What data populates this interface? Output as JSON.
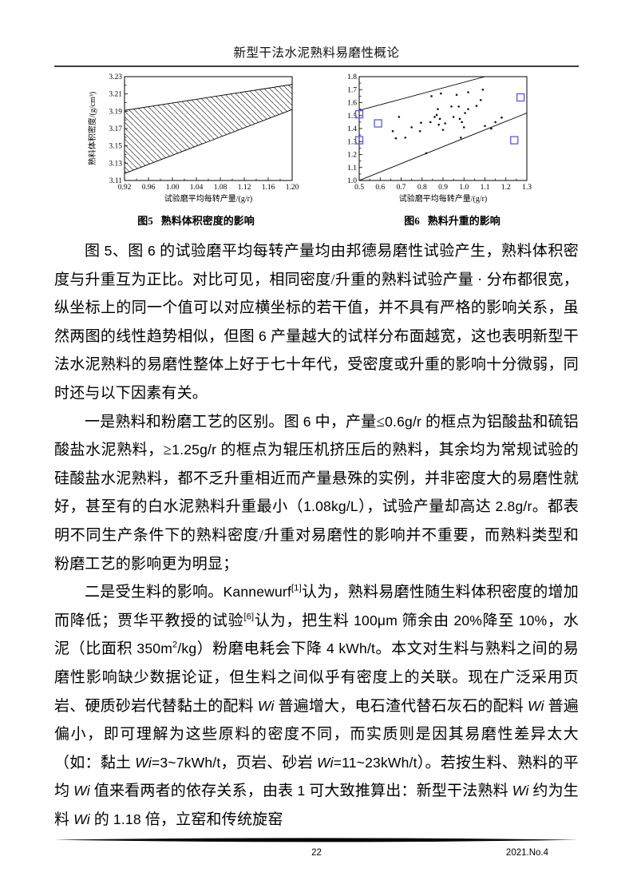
{
  "header": {
    "title": "新型干法水泥熟料易磨性概论"
  },
  "figures": [
    {
      "caption_no": "图5",
      "caption_text": "熟料体积密度的影响"
    },
    {
      "caption_no": "图6",
      "caption_text": "熟料升重的影响"
    }
  ],
  "chart_data": [
    {
      "type": "area",
      "subtype": "hatched-band",
      "title": "图5 熟料体积密度的影响",
      "xlabel": "试验磨平均每转产量/(g/r)",
      "ylabel": "熟料体积密度/(g/cm³)",
      "xlim": [
        0.92,
        1.2
      ],
      "ylim": [
        3.11,
        3.23
      ],
      "xticks": [
        "0.92",
        "0.96",
        "1.00",
        "1.04",
        "1.08",
        "1.12",
        "1.16",
        "1.20"
      ],
      "yticks": [
        "3.11",
        "3.13",
        "3.15",
        "3.17",
        "3.19",
        "3.21",
        "3.23"
      ],
      "band_upper": [
        [
          0.92,
          3.191
        ],
        [
          1.2,
          3.221
        ]
      ],
      "band_lower": [
        [
          0.92,
          3.118
        ],
        [
          1.2,
          3.192
        ]
      ],
      "hatch_direction": "backslash",
      "grid": false,
      "legend": "none"
    },
    {
      "type": "scatter",
      "title": "图6 熟料升重的影响",
      "xlabel": "试验磨平均每转产量/(g/r)",
      "ylabel": "熟料升重/(kg/L)",
      "xlim": [
        0.5,
        1.3
      ],
      "ylim": [
        1.0,
        1.8
      ],
      "xticks": [
        "0.5",
        "0.6",
        "0.7",
        "0.8",
        "0.9",
        "1.0",
        "1.1",
        "1.2",
        "1.3"
      ],
      "yticks": [
        "1.0",
        "1.1",
        "1.2",
        "1.3",
        "1.4",
        "1.5",
        "1.6",
        "1.7",
        "1.8"
      ],
      "square_color": "#5b5bd6",
      "dot_color": "#111111",
      "dots": [
        [
          0.66,
          1.38
        ],
        [
          0.675,
          1.325
        ],
        [
          0.69,
          1.49
        ],
        [
          0.72,
          1.33
        ],
        [
          0.75,
          1.41
        ],
        [
          0.79,
          1.38
        ],
        [
          0.795,
          1.445
        ],
        [
          0.82,
          1.21
        ],
        [
          0.84,
          1.45
        ],
        [
          0.845,
          1.65
        ],
        [
          0.86,
          1.49
        ],
        [
          0.87,
          1.505
        ],
        [
          0.875,
          1.55
        ],
        [
          0.88,
          1.43
        ],
        [
          0.885,
          1.475
        ],
        [
          0.89,
          1.67
        ],
        [
          0.9,
          1.39
        ],
        [
          0.91,
          1.44
        ],
        [
          0.94,
          1.57
        ],
        [
          0.95,
          1.49
        ],
        [
          0.965,
          1.66
        ],
        [
          0.975,
          1.57
        ],
        [
          0.98,
          1.475
        ],
        [
          0.985,
          1.33
        ],
        [
          0.99,
          1.45
        ],
        [
          1.0,
          1.41
        ],
        [
          1.005,
          1.52
        ],
        [
          1.02,
          1.55
        ],
        [
          1.02,
          1.68
        ],
        [
          1.06,
          1.575
        ],
        [
          1.08,
          1.62
        ],
        [
          1.09,
          1.7
        ],
        [
          1.1,
          1.42
        ],
        [
          1.13,
          1.4
        ],
        [
          1.15,
          1.45
        ],
        [
          1.18,
          1.485
        ]
      ],
      "squares": [
        [
          0.5,
          1.51
        ],
        [
          0.5,
          1.31
        ],
        [
          0.59,
          1.44
        ],
        [
          1.24,
          1.31
        ],
        [
          1.27,
          1.64
        ]
      ],
      "envelope_lines": [
        {
          "from": [
            0.5,
            1.0
          ],
          "to": [
            1.3,
            1.52
          ]
        },
        {
          "from": [
            0.5,
            1.54
          ],
          "to": [
            1.1,
            1.8
          ]
        }
      ],
      "grid": false,
      "legend": "none"
    }
  ],
  "paragraphs": [
    [
      {
        "t": "图 "
      },
      {
        "t": "5",
        "f": "lat"
      },
      {
        "t": "、图 "
      },
      {
        "t": "6",
        "f": "lat"
      },
      {
        "t": " 的试验磨平均每转产量均由邦德易磨性试验产生，熟料体积密度与升重互为正比。对比可见，相同密度/升重的熟料试验产量 · 分布都很宽，纵坐标上的同一个值可以对应横坐标的若干值，并不具有严格的影响关系，虽然两图的线性趋势相似，但图 "
      },
      {
        "t": "6",
        "f": "lat"
      },
      {
        "t": " 产量越大的试样分布面越宽，这也表明新型干法水泥熟料的易磨性整体上好于七十年代，受密度或升重的影响十分微弱，同时还与以下因素有关。"
      }
    ],
    [
      {
        "t": "一是熟料和粉磨工艺的区别。图 "
      },
      {
        "t": "6",
        "f": "lat"
      },
      {
        "t": " 中，产量≤"
      },
      {
        "t": "0.6g/r",
        "f": "lat"
      },
      {
        "t": " 的框点为铝酸盐和硫铝酸盐水泥熟料，≥"
      },
      {
        "t": "1.25g/r",
        "f": "lat"
      },
      {
        "t": " 的框点为辊压机挤压后的熟料，其余均为常规试验的硅酸盐水泥熟料，都不乏升重相近而产量悬殊的实例，并非密度大的易磨性就好，甚至有的白水泥熟料升重最小（"
      },
      {
        "t": "1.08kg/L",
        "f": "lat"
      },
      {
        "t": "），试验产量却高达 "
      },
      {
        "t": "2.8g/r",
        "f": "lat"
      },
      {
        "t": "。都表明不同生产条件下的熟料密度/升重对易磨性的影响并不重要，而熟料类型和粉磨工艺的影响更为明显；"
      }
    ],
    [
      {
        "t": "二是受生料的影响。"
      },
      {
        "t": "Kannewurf",
        "f": "lat"
      },
      {
        "t": "[1]",
        "f": "sup"
      },
      {
        "t": "认为，熟料易磨性随生料体积密度的增加而降低；贾华平教授的试验"
      },
      {
        "t": "[6]",
        "f": "sup"
      },
      {
        "t": "认为，把生料 "
      },
      {
        "t": "100μm",
        "f": "lat"
      },
      {
        "t": " 筛余由 "
      },
      {
        "t": "20%",
        "f": "lat"
      },
      {
        "t": "降至 "
      },
      {
        "t": "10%",
        "f": "lat"
      },
      {
        "t": "，水泥（比面积 "
      },
      {
        "t": "350m",
        "f": "lat"
      },
      {
        "t": "2",
        "f": "sup"
      },
      {
        "t": "/kg",
        "f": "lat"
      },
      {
        "t": "）粉磨电耗会下降 "
      },
      {
        "t": "4 kWh/t",
        "f": "lat"
      },
      {
        "t": "。本文对生料与熟料之间的易磨性影响缺少数据论证，但生料之间似乎有密度上的关联。现在广泛采用页岩、硬质砂岩代替黏土的配料 "
      },
      {
        "t": "Wi",
        "f": "lat-it"
      },
      {
        "t": " 普遍增大，电石渣代替石灰石的配料 "
      },
      {
        "t": "Wi",
        "f": "lat-it"
      },
      {
        "t": " 普遍偏小，即可理解为这些原料的密度不同，而实质则是因其易磨性差异太大（如：黏土 "
      },
      {
        "t": "Wi",
        "f": "lat-it"
      },
      {
        "t": "=3~7kWh/t",
        "f": "lat"
      },
      {
        "t": "，页岩、砂岩 "
      },
      {
        "t": "Wi",
        "f": "lat-it"
      },
      {
        "t": "=11~23kWh/t",
        "f": "lat"
      },
      {
        "t": "）。若按生料、熟料的平均 "
      },
      {
        "t": "Wi",
        "f": "lat-it"
      },
      {
        "t": " 值来看两者的依存关系，由表 "
      },
      {
        "t": "1",
        "f": "lat"
      },
      {
        "t": " 可大致推算出：新型干法熟料 "
      },
      {
        "t": "Wi",
        "f": "lat-it"
      },
      {
        "t": " 约为生料 "
      },
      {
        "t": "Wi",
        "f": "lat-it"
      },
      {
        "t": " 的 "
      },
      {
        "t": "1.18",
        "f": "lat"
      },
      {
        "t": " 倍，立窑和传统旋窑"
      }
    ]
  ],
  "footer": {
    "page_number": "22",
    "issue": "2021.No.4"
  }
}
